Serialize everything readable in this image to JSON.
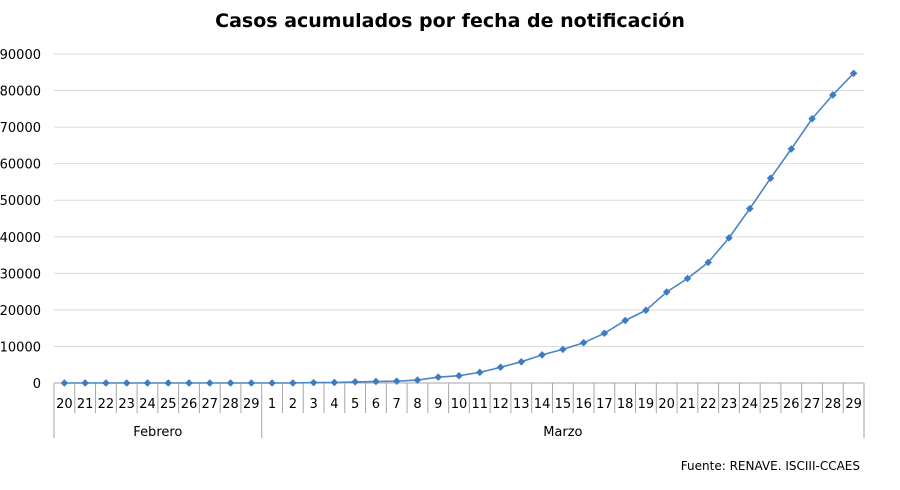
{
  "source_note": "Fuente:  RENAVE. ISCIII-CCAES",
  "colors": {
    "series": "#4a86c5",
    "marker": "#3e7cc0",
    "grid": "#dcdcdc",
    "axis": "#a6a6a6"
  },
  "chart_data": {
    "type": "line",
    "title": "Casos acumulados por fecha de notificación",
    "xlabel": "",
    "ylabel": "",
    "ylim": [
      0,
      90000
    ],
    "yticks": [
      0,
      10000,
      20000,
      30000,
      40000,
      50000,
      60000,
      70000,
      80000,
      90000
    ],
    "grid": true,
    "legend": "none",
    "categories": [
      "20",
      "21",
      "22",
      "23",
      "24",
      "25",
      "26",
      "27",
      "28",
      "29",
      "1",
      "2",
      "3",
      "4",
      "5",
      "6",
      "7",
      "8",
      "9",
      "10",
      "11",
      "12",
      "13",
      "14",
      "15",
      "16",
      "17",
      "18",
      "19",
      "20",
      "21",
      "22",
      "23",
      "24",
      "25",
      "26",
      "27",
      "28",
      "29"
    ],
    "groups": [
      {
        "label": "Febrero",
        "count": 10
      },
      {
        "label": "Marzo",
        "count": 29
      }
    ],
    "series": [
      {
        "values": [
          0,
          0,
          0,
          0,
          0,
          0,
          0,
          0,
          0,
          0,
          0,
          0,
          100,
          150,
          300,
          400,
          500,
          800,
          1600,
          2000,
          2900,
          4300,
          5800,
          7700,
          9200,
          11000,
          13600,
          17100,
          19900,
          24900,
          28600,
          33000,
          39700,
          47700,
          56000,
          64000,
          72300,
          78800,
          84700
        ]
      }
    ]
  }
}
